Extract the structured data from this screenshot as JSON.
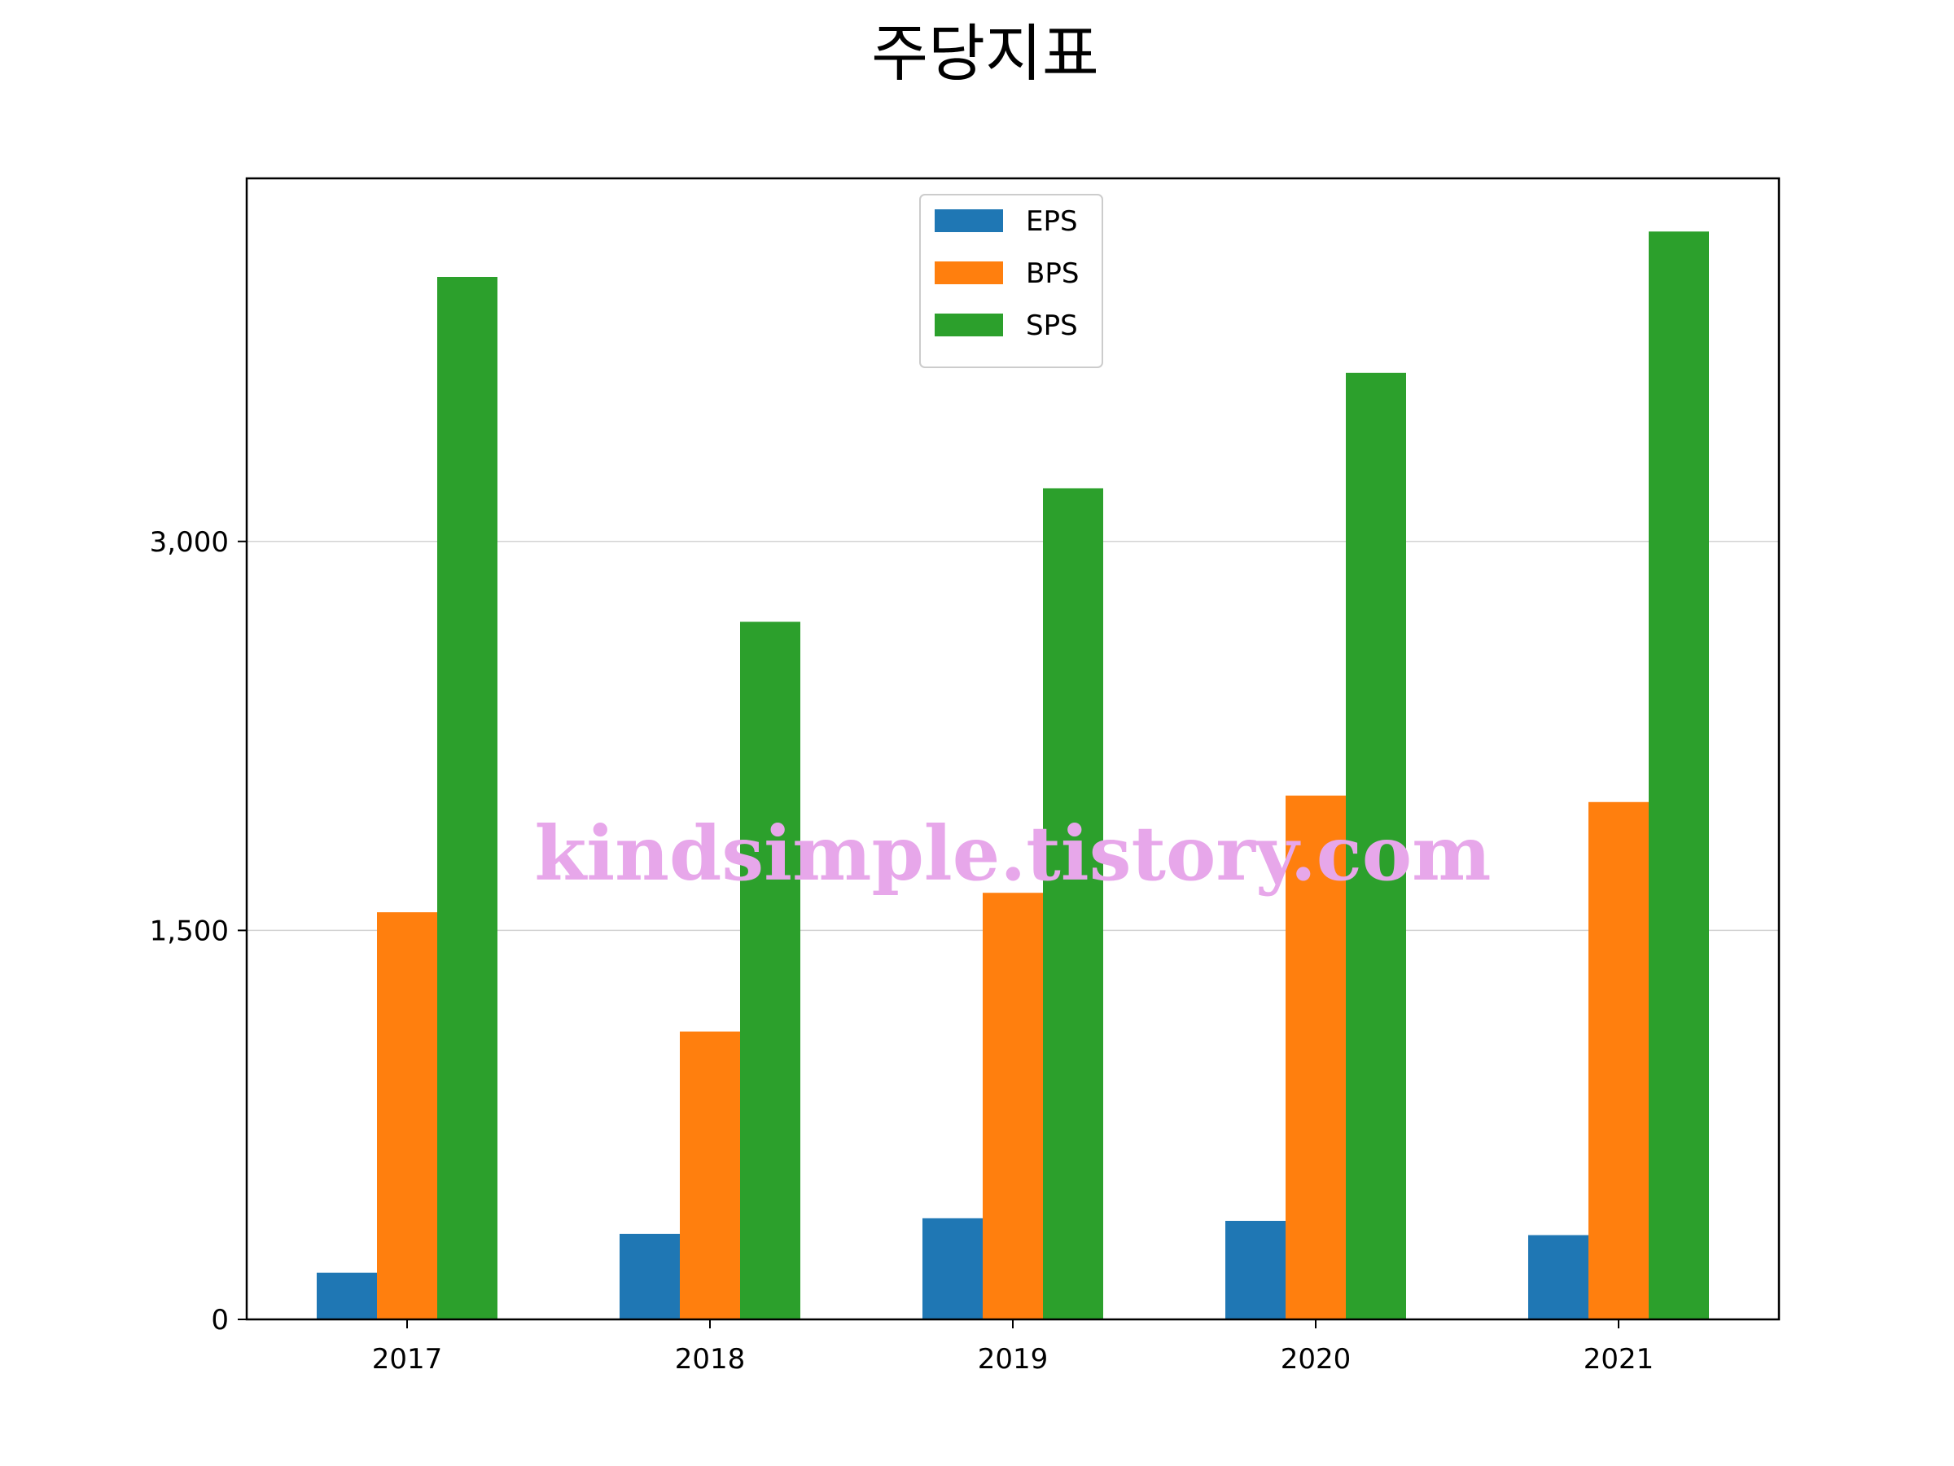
{
  "chart_data": {
    "type": "bar",
    "title": "주당지표",
    "xlabel": "",
    "ylabel": "",
    "categories": [
      "2017",
      "2018",
      "2019",
      "2020",
      "2021"
    ],
    "series": [
      {
        "name": "EPS",
        "color": "#1f77b4",
        "values": [
          180,
          330,
          390,
          380,
          325
        ]
      },
      {
        "name": "BPS",
        "color": "#ff7f0e",
        "values": [
          1570,
          1110,
          1645,
          2020,
          1995
        ]
      },
      {
        "name": "SPS",
        "color": "#2ca02c",
        "values": [
          4020,
          2690,
          3205,
          3650,
          4195
        ]
      }
    ],
    "ylim": [
      0,
      4400
    ],
    "yticks": [
      0,
      1500,
      3000
    ],
    "ytick_labels": [
      "0",
      "1,500",
      "3,000"
    ],
    "grid": "y",
    "legend_position": "upper center"
  },
  "watermark": "kindsimple.tistory.com"
}
